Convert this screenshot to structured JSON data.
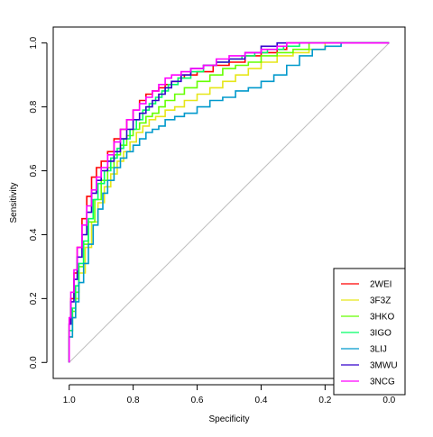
{
  "chart_data": {
    "type": "line",
    "xlabel": "Specificity",
    "ylabel": "Sensitivity",
    "xlim": [
      1.05,
      -0.05
    ],
    "ylim": [
      -0.05,
      1.05
    ],
    "x_ticks": [
      1.0,
      0.8,
      0.6,
      0.4,
      0.2,
      0.0
    ],
    "y_ticks": [
      0.0,
      0.2,
      0.4,
      0.6,
      0.8,
      1.0
    ],
    "x_tick_labels": [
      "1.0",
      "0.8",
      "0.6",
      "0.4",
      "0.2",
      "0.0"
    ],
    "y_tick_labels": [
      "0.0",
      "0.2",
      "0.4",
      "0.6",
      "0.8",
      "1.0"
    ],
    "grid": false,
    "legend_position": "bottom-right",
    "reference_line": {
      "from": [
        1,
        0
      ],
      "to": [
        0,
        1
      ],
      "color": "#BEBEBE"
    },
    "series": [
      {
        "name": "2WEI",
        "color": "#FF0000",
        "points": [
          [
            1.0,
            0.0
          ],
          [
            0.995,
            0.12
          ],
          [
            0.985,
            0.2
          ],
          [
            0.975,
            0.28
          ],
          [
            0.96,
            0.36
          ],
          [
            0.945,
            0.45
          ],
          [
            0.93,
            0.52
          ],
          [
            0.915,
            0.58
          ],
          [
            0.9,
            0.61
          ],
          [
            0.88,
            0.63
          ],
          [
            0.86,
            0.66
          ],
          [
            0.84,
            0.7
          ],
          [
            0.82,
            0.73
          ],
          [
            0.8,
            0.76
          ],
          [
            0.78,
            0.79
          ],
          [
            0.76,
            0.82
          ],
          [
            0.74,
            0.84
          ],
          [
            0.72,
            0.85
          ],
          [
            0.7,
            0.86
          ],
          [
            0.68,
            0.87
          ],
          [
            0.66,
            0.88
          ],
          [
            0.64,
            0.89
          ],
          [
            0.6,
            0.9
          ],
          [
            0.55,
            0.91
          ],
          [
            0.5,
            0.93
          ],
          [
            0.45,
            0.94
          ],
          [
            0.4,
            0.96
          ],
          [
            0.35,
            0.97
          ],
          [
            0.32,
            0.98
          ],
          [
            0.3,
            1.0
          ],
          [
            0.0,
            1.0
          ]
        ]
      },
      {
        "name": "3F3Z",
        "color": "#E6E619",
        "points": [
          [
            1.0,
            0.0
          ],
          [
            0.99,
            0.08
          ],
          [
            0.98,
            0.14
          ],
          [
            0.97,
            0.2
          ],
          [
            0.95,
            0.28
          ],
          [
            0.93,
            0.36
          ],
          [
            0.91,
            0.44
          ],
          [
            0.89,
            0.5
          ],
          [
            0.87,
            0.55
          ],
          [
            0.85,
            0.59
          ],
          [
            0.83,
            0.63
          ],
          [
            0.81,
            0.66
          ],
          [
            0.79,
            0.69
          ],
          [
            0.77,
            0.72
          ],
          [
            0.75,
            0.74
          ],
          [
            0.73,
            0.76
          ],
          [
            0.7,
            0.77
          ],
          [
            0.67,
            0.79
          ],
          [
            0.64,
            0.8
          ],
          [
            0.6,
            0.82
          ],
          [
            0.56,
            0.84
          ],
          [
            0.52,
            0.86
          ],
          [
            0.48,
            0.88
          ],
          [
            0.44,
            0.9
          ],
          [
            0.4,
            0.92
          ],
          [
            0.35,
            0.94
          ],
          [
            0.3,
            0.96
          ],
          [
            0.25,
            0.97
          ],
          [
            0.2,
            0.98
          ],
          [
            0.15,
            1.0
          ],
          [
            0.0,
            1.0
          ]
        ]
      },
      {
        "name": "3HKO",
        "color": "#66FF00",
        "points": [
          [
            1.0,
            0.0
          ],
          [
            0.99,
            0.1
          ],
          [
            0.98,
            0.16
          ],
          [
            0.97,
            0.22
          ],
          [
            0.955,
            0.3
          ],
          [
            0.94,
            0.37
          ],
          [
            0.92,
            0.44
          ],
          [
            0.9,
            0.51
          ],
          [
            0.88,
            0.57
          ],
          [
            0.86,
            0.61
          ],
          [
            0.84,
            0.65
          ],
          [
            0.82,
            0.68
          ],
          [
            0.8,
            0.71
          ],
          [
            0.78,
            0.73
          ],
          [
            0.76,
            0.75
          ],
          [
            0.74,
            0.77
          ],
          [
            0.72,
            0.78
          ],
          [
            0.7,
            0.8
          ],
          [
            0.67,
            0.82
          ],
          [
            0.64,
            0.84
          ],
          [
            0.6,
            0.86
          ],
          [
            0.56,
            0.88
          ],
          [
            0.52,
            0.9
          ],
          [
            0.48,
            0.92
          ],
          [
            0.44,
            0.93
          ],
          [
            0.4,
            0.94
          ],
          [
            0.35,
            0.96
          ],
          [
            0.3,
            0.97
          ],
          [
            0.25,
            0.98
          ],
          [
            0.2,
            1.0
          ],
          [
            0.0,
            1.0
          ]
        ]
      },
      {
        "name": "3IGO",
        "color": "#00FF66",
        "points": [
          [
            1.0,
            0.0
          ],
          [
            0.99,
            0.1
          ],
          [
            0.98,
            0.17
          ],
          [
            0.97,
            0.24
          ],
          [
            0.955,
            0.31
          ],
          [
            0.94,
            0.38
          ],
          [
            0.925,
            0.45
          ],
          [
            0.91,
            0.51
          ],
          [
            0.89,
            0.56
          ],
          [
            0.87,
            0.6
          ],
          [
            0.85,
            0.64
          ],
          [
            0.83,
            0.67
          ],
          [
            0.81,
            0.7
          ],
          [
            0.79,
            0.73
          ],
          [
            0.77,
            0.76
          ],
          [
            0.75,
            0.79
          ],
          [
            0.73,
            0.81
          ],
          [
            0.71,
            0.83
          ],
          [
            0.69,
            0.85
          ],
          [
            0.66,
            0.87
          ],
          [
            0.62,
            0.89
          ],
          [
            0.58,
            0.91
          ],
          [
            0.54,
            0.93
          ],
          [
            0.5,
            0.94
          ],
          [
            0.46,
            0.95
          ],
          [
            0.42,
            0.96
          ],
          [
            0.38,
            0.97
          ],
          [
            0.33,
            0.98
          ],
          [
            0.28,
            0.99
          ],
          [
            0.22,
            1.0
          ],
          [
            0.0,
            1.0
          ]
        ]
      },
      {
        "name": "3LIJ",
        "color": "#0099CC",
        "points": [
          [
            1.0,
            0.0
          ],
          [
            0.99,
            0.08
          ],
          [
            0.98,
            0.14
          ],
          [
            0.97,
            0.19
          ],
          [
            0.955,
            0.25
          ],
          [
            0.94,
            0.31
          ],
          [
            0.925,
            0.37
          ],
          [
            0.91,
            0.43
          ],
          [
            0.895,
            0.48
          ],
          [
            0.88,
            0.53
          ],
          [
            0.86,
            0.57
          ],
          [
            0.84,
            0.61
          ],
          [
            0.82,
            0.64
          ],
          [
            0.8,
            0.66
          ],
          [
            0.78,
            0.68
          ],
          [
            0.76,
            0.7
          ],
          [
            0.74,
            0.72
          ],
          [
            0.72,
            0.73
          ],
          [
            0.7,
            0.74
          ],
          [
            0.67,
            0.76
          ],
          [
            0.64,
            0.77
          ],
          [
            0.6,
            0.78
          ],
          [
            0.56,
            0.8
          ],
          [
            0.52,
            0.82
          ],
          [
            0.48,
            0.83
          ],
          [
            0.44,
            0.85
          ],
          [
            0.4,
            0.86
          ],
          [
            0.36,
            0.88
          ],
          [
            0.32,
            0.9
          ],
          [
            0.28,
            0.93
          ],
          [
            0.24,
            0.96
          ],
          [
            0.2,
            0.98
          ],
          [
            0.15,
            0.99
          ],
          [
            0.1,
            1.0
          ],
          [
            0.0,
            1.0
          ]
        ]
      },
      {
        "name": "3MWU",
        "color": "#3300CC",
        "points": [
          [
            1.0,
            0.0
          ],
          [
            0.995,
            0.12
          ],
          [
            0.985,
            0.19
          ],
          [
            0.975,
            0.26
          ],
          [
            0.96,
            0.33
          ],
          [
            0.945,
            0.4
          ],
          [
            0.93,
            0.47
          ],
          [
            0.915,
            0.53
          ],
          [
            0.9,
            0.57
          ],
          [
            0.88,
            0.6
          ],
          [
            0.86,
            0.63
          ],
          [
            0.84,
            0.66
          ],
          [
            0.82,
            0.7
          ],
          [
            0.8,
            0.73
          ],
          [
            0.78,
            0.76
          ],
          [
            0.76,
            0.78
          ],
          [
            0.74,
            0.8
          ],
          [
            0.72,
            0.82
          ],
          [
            0.7,
            0.84
          ],
          [
            0.68,
            0.86
          ],
          [
            0.65,
            0.88
          ],
          [
            0.62,
            0.9
          ],
          [
            0.58,
            0.92
          ],
          [
            0.54,
            0.93
          ],
          [
            0.5,
            0.94
          ],
          [
            0.45,
            0.95
          ],
          [
            0.4,
            0.97
          ],
          [
            0.35,
            0.99
          ],
          [
            0.3,
            1.0
          ],
          [
            0.0,
            1.0
          ]
        ]
      },
      {
        "name": "3NCG",
        "color": "#FF00FF",
        "points": [
          [
            1.0,
            0.0
          ],
          [
            0.995,
            0.14
          ],
          [
            0.985,
            0.22
          ],
          [
            0.975,
            0.29
          ],
          [
            0.96,
            0.36
          ],
          [
            0.945,
            0.43
          ],
          [
            0.93,
            0.49
          ],
          [
            0.915,
            0.54
          ],
          [
            0.9,
            0.58
          ],
          [
            0.88,
            0.61
          ],
          [
            0.86,
            0.65
          ],
          [
            0.84,
            0.69
          ],
          [
            0.82,
            0.73
          ],
          [
            0.8,
            0.76
          ],
          [
            0.78,
            0.79
          ],
          [
            0.76,
            0.81
          ],
          [
            0.74,
            0.83
          ],
          [
            0.72,
            0.85
          ],
          [
            0.7,
            0.87
          ],
          [
            0.68,
            0.89
          ],
          [
            0.65,
            0.9
          ],
          [
            0.62,
            0.91
          ],
          [
            0.58,
            0.92
          ],
          [
            0.54,
            0.93
          ],
          [
            0.5,
            0.95
          ],
          [
            0.45,
            0.96
          ],
          [
            0.4,
            0.97
          ],
          [
            0.35,
            0.98
          ],
          [
            0.32,
            0.99
          ],
          [
            0.28,
            1.0
          ],
          [
            0.0,
            1.0
          ]
        ]
      }
    ]
  }
}
